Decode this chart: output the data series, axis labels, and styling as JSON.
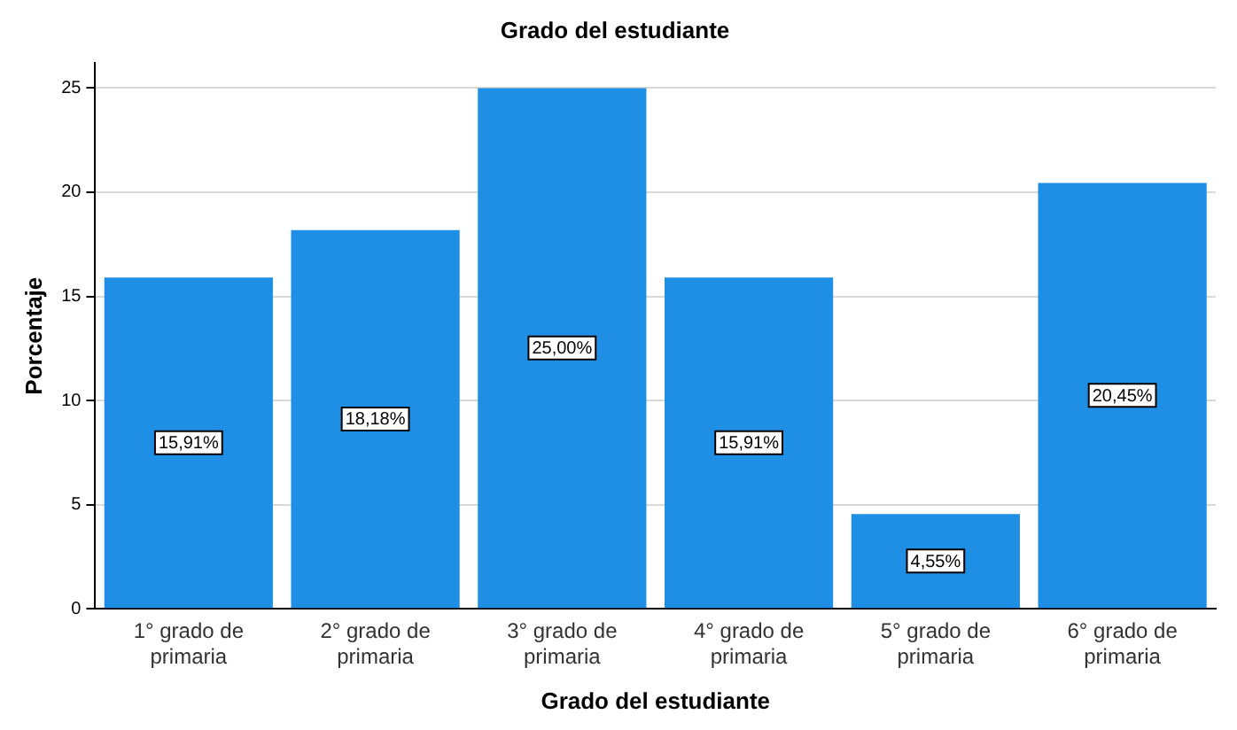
{
  "chart_data": {
    "type": "bar",
    "title": "Grado del estudiante",
    "xlabel": "Grado del estudiante",
    "ylabel": "Porcentaje",
    "categories": [
      "1° grado de primaria",
      "2° grado de primaria",
      "3° grado de primaria",
      "4° grado de primaria",
      "5° grado de primaria",
      "6° grado de primaria"
    ],
    "values": [
      15.91,
      18.18,
      25.0,
      15.91,
      4.55,
      20.45
    ],
    "value_labels": [
      "15,91%",
      "18,18%",
      "25,00%",
      "15,91%",
      "4,55%",
      "20,45%"
    ],
    "color": "#1f8fe6",
    "ylim": [
      0,
      26.2
    ],
    "yticks": [
      0,
      5,
      10,
      15,
      20,
      25
    ],
    "grid": "y",
    "legend": false
  }
}
